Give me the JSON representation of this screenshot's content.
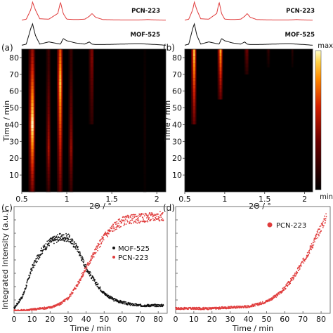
{
  "colors": {
    "pcn": "#e03c3c",
    "mof": "#111111",
    "frame": "#555555"
  },
  "panels": {
    "a": {
      "label": "(a)",
      "ref_top": "PCN-223",
      "ref_bottom": "MOF-525"
    },
    "b": {
      "label": "(b)",
      "ref_top": "PCN-223",
      "ref_bottom": "MOF-525"
    },
    "c": {
      "label": "(c)"
    },
    "d": {
      "label": "(d)"
    }
  },
  "chart_data": [
    {
      "type": "line",
      "panel": "a-top",
      "title": "",
      "x": [
        0.5,
        0.55,
        0.6,
        0.62,
        0.65,
        0.7,
        0.8,
        0.9,
        0.93,
        0.96,
        1.0,
        1.1,
        1.2,
        1.25,
        1.28,
        1.32,
        1.4,
        1.6,
        1.8,
        1.9,
        2.0,
        2.1
      ],
      "series": [
        {
          "name": "PCN-223",
          "values": [
            0.05,
            0.1,
            0.6,
            1.0,
            0.6,
            0.12,
            0.1,
            0.4,
            1.0,
            0.4,
            0.1,
            0.08,
            0.1,
            0.25,
            0.4,
            0.2,
            0.08,
            0.06,
            0.06,
            0.08,
            0.06,
            0.05
          ]
        },
        {
          "name": "MOF-525",
          "values": [
            0.05,
            0.1,
            0.8,
            1.0,
            0.5,
            0.1,
            0.2,
            0.12,
            0.1,
            0.35,
            0.25,
            0.15,
            0.1,
            0.2,
            0.1,
            0.08,
            0.08,
            0.1,
            0.12,
            0.1,
            0.08,
            0.05
          ]
        }
      ]
    },
    {
      "type": "heatmap",
      "panel": "a",
      "xlabel": "2Θ / °",
      "ylabel": "Time / min",
      "xlim": [
        0.5,
        2.1
      ],
      "ylim": [
        0,
        85
      ],
      "xticks": [
        "0.5",
        "1",
        "1.5",
        "2"
      ],
      "yticks": [
        "10",
        "20",
        "30",
        "40",
        "50",
        "60",
        "70",
        "80"
      ],
      "bands": [
        {
          "x": 0.62,
          "width": 0.025,
          "t_start": 0,
          "t_max": 85,
          "peak": 1.0,
          "peak_t": 40
        },
        {
          "x": 0.8,
          "width": 0.018,
          "t_start": 0,
          "t_max": 85,
          "peak": 0.5,
          "peak_t": 25
        },
        {
          "x": 0.93,
          "width": 0.022,
          "t_start": 0,
          "t_max": 85,
          "peak": 0.9,
          "peak_t": 65
        },
        {
          "x": 1.05,
          "width": 0.018,
          "t_start": 0,
          "t_max": 85,
          "peak": 0.45,
          "peak_t": 25
        },
        {
          "x": 1.28,
          "width": 0.02,
          "t_start": 40,
          "t_max": 85,
          "peak": 0.4,
          "peak_t": 80
        },
        {
          "x": 1.87,
          "width": 0.012,
          "t_start": 0,
          "t_max": 85,
          "peak": 0.08,
          "peak_t": 40
        }
      ]
    },
    {
      "type": "heatmap",
      "panel": "b",
      "xlabel": "2Θ / °",
      "ylabel": "Time / min",
      "xlim": [
        0.5,
        2.1
      ],
      "ylim": [
        0,
        85
      ],
      "xticks": [
        "0.5",
        "1",
        "1.5",
        "2"
      ],
      "yticks": [
        "10",
        "20",
        "30",
        "40",
        "50",
        "60",
        "70",
        "80"
      ],
      "colorbar": {
        "max_label": "max",
        "min_label": "min"
      },
      "bands": [
        {
          "x": 0.62,
          "width": 0.022,
          "t_start": 40,
          "t_max": 85,
          "peak": 0.9,
          "peak_t": 82
        },
        {
          "x": 0.95,
          "width": 0.022,
          "t_start": 55,
          "t_max": 85,
          "peak": 0.85,
          "peak_t": 84
        },
        {
          "x": 1.28,
          "width": 0.02,
          "t_start": 70,
          "t_max": 85,
          "peak": 0.35,
          "peak_t": 84
        },
        {
          "x": 1.55,
          "width": 0.015,
          "t_start": 75,
          "t_max": 85,
          "peak": 0.15,
          "peak_t": 84
        },
        {
          "x": 1.85,
          "width": 0.012,
          "t_start": 75,
          "t_max": 85,
          "peak": 0.12,
          "peak_t": 84
        }
      ]
    },
    {
      "type": "scatter",
      "panel": "c",
      "xlabel": "Time / min",
      "ylabel": "Integrated Intensity (a.u.)",
      "xlim": [
        0,
        85
      ],
      "xticks": [
        "0",
        "10",
        "20",
        "30",
        "40",
        "50",
        "60",
        "70",
        "80"
      ],
      "series": [
        {
          "name": "MOF-525",
          "x": [
            0,
            5,
            10,
            15,
            20,
            25,
            30,
            35,
            40,
            45,
            50,
            55,
            60,
            65,
            70,
            75,
            80,
            83
          ],
          "values": [
            0.02,
            0.15,
            0.42,
            0.58,
            0.68,
            0.72,
            0.72,
            0.62,
            0.42,
            0.28,
            0.17,
            0.11,
            0.08,
            0.06,
            0.05,
            0.05,
            0.05,
            0.05
          ]
        },
        {
          "name": "PCN-223",
          "x": [
            0,
            5,
            10,
            15,
            20,
            25,
            30,
            35,
            40,
            45,
            50,
            55,
            60,
            65,
            70,
            75,
            80,
            83
          ],
          "values": [
            0.0,
            0.0,
            0.01,
            0.02,
            0.03,
            0.06,
            0.12,
            0.25,
            0.42,
            0.58,
            0.73,
            0.82,
            0.88,
            0.9,
            0.91,
            0.92,
            0.93,
            0.93
          ]
        }
      ]
    },
    {
      "type": "scatter",
      "panel": "d",
      "xlabel": "Time / min",
      "xlim": [
        0,
        85
      ],
      "xticks": [
        "0",
        "10",
        "20",
        "30",
        "40",
        "50",
        "60",
        "70",
        "80"
      ],
      "series": [
        {
          "name": "PCN-223",
          "x": [
            0,
            10,
            20,
            30,
            40,
            45,
            50,
            55,
            60,
            65,
            70,
            75,
            80,
            83
          ],
          "values": [
            0.02,
            0.02,
            0.02,
            0.03,
            0.04,
            0.06,
            0.09,
            0.14,
            0.22,
            0.33,
            0.48,
            0.64,
            0.82,
            0.93
          ]
        }
      ]
    }
  ]
}
